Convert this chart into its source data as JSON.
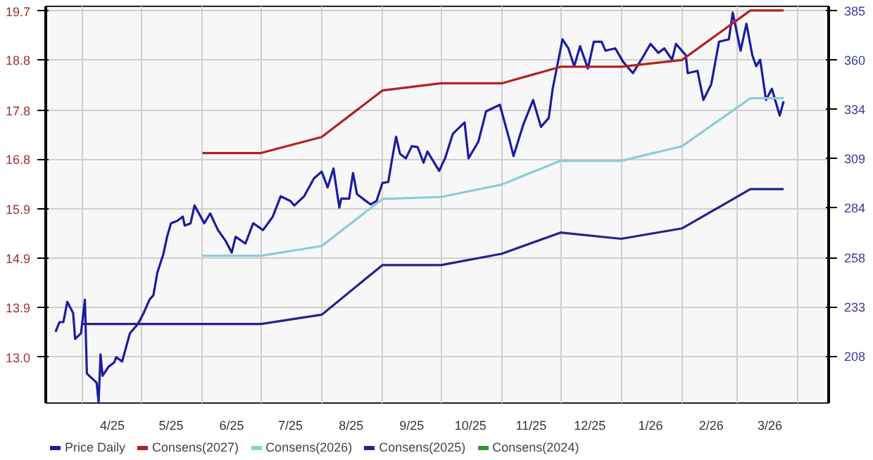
{
  "chart_data": {
    "type": "line",
    "xlim": [
      "2025-03-13",
      "2026-04-17"
    ],
    "xticks": [
      {
        "value": "2025-04-01",
        "label": null
      },
      {
        "value": "2025-05-01",
        "label": null
      },
      {
        "value": "2025-06-01",
        "label": null
      },
      {
        "value": "2025-07-01",
        "label": null
      },
      {
        "value": "2025-08-01",
        "label": null
      },
      {
        "value": "2025-09-01",
        "label": null
      },
      {
        "value": "2025-10-01",
        "label": null
      },
      {
        "value": "2025-11-01",
        "label": null
      },
      {
        "value": "2025-12-01",
        "label": null
      },
      {
        "value": "2026-01-01",
        "label": null
      },
      {
        "value": "2026-02-01",
        "label": null
      },
      {
        "value": "2026-03-01",
        "label": null
      },
      {
        "value": "2026-04-01",
        "label": null
      },
      {
        "value": "2025-04-16",
        "label": "4/25"
      },
      {
        "value": "2025-05-16",
        "label": "5/25"
      },
      {
        "value": "2025-06-16",
        "label": "6/25"
      },
      {
        "value": "2025-07-16",
        "label": "7/25"
      },
      {
        "value": "2025-08-16",
        "label": "8/25"
      },
      {
        "value": "2025-09-16",
        "label": "9/25"
      },
      {
        "value": "2025-10-16",
        "label": "10/25"
      },
      {
        "value": "2025-11-16",
        "label": "11/25"
      },
      {
        "value": "2025-12-16",
        "label": "12/25"
      },
      {
        "value": "2026-01-16",
        "label": "1/26"
      },
      {
        "value": "2026-02-16",
        "label": "2/26"
      },
      {
        "value": "2026-03-18",
        "label": "3/26"
      }
    ],
    "ylim": [
      12.1,
      19.78
    ],
    "yticks": [
      {
        "value": 12.99,
        "label": "13.0"
      },
      {
        "value": 13.95,
        "label": "13.9"
      },
      {
        "value": 14.9,
        "label": "14.9"
      },
      {
        "value": 15.86,
        "label": "15.9"
      },
      {
        "value": 16.82,
        "label": "16.8"
      },
      {
        "value": 17.77,
        "label": "17.8"
      },
      {
        "value": 18.75,
        "label": "18.8"
      },
      {
        "value": 19.69,
        "label": "19.7"
      }
    ],
    "y2lim": [
      184,
      387
    ],
    "y2ticks": [
      208,
      {
        "value": 233.3,
        "label": "233"
      },
      {
        "value": 258.4,
        "label": "258"
      },
      {
        "value": 283.9,
        "label": "284"
      },
      {
        "value": 309.1,
        "label": "309"
      },
      {
        "value": 334.4,
        "label": "334"
      },
      {
        "value": 359.7,
        "label": "360"
      },
      385
    ],
    "grid": true,
    "legend": "bottom",
    "series": [
      {
        "name": "Price Daily",
        "color": "#1c1ca0",
        "axis": "y2",
        "x": [
          "2025-03-18",
          "2025-03-20",
          "2025-03-22",
          "2025-03-24",
          "2025-03-27",
          "2025-03-28",
          "2025-03-31",
          "2025-04-02",
          "2025-04-03",
          "2025-04-08",
          "2025-04-09",
          "2025-04-10",
          "2025-04-11",
          "2025-04-14",
          "2025-04-17",
          "2025-04-18",
          "2025-04-21",
          "2025-04-25",
          "2025-04-29",
          "2025-05-02",
          "2025-05-05",
          "2025-05-07",
          "2025-05-09",
          "2025-05-12",
          "2025-05-14",
          "2025-05-16",
          "2025-05-19",
          "2025-05-22",
          "2025-05-23",
          "2025-05-26",
          "2025-05-28",
          "2025-06-02",
          "2025-06-05",
          "2025-06-09",
          "2025-06-13",
          "2025-06-16",
          "2025-06-18",
          "2025-06-23",
          "2025-06-27",
          "2025-07-02",
          "2025-07-07",
          "2025-07-11",
          "2025-07-16",
          "2025-07-18",
          "2025-07-23",
          "2025-07-28",
          "2025-08-01",
          "2025-08-04",
          "2025-08-07",
          "2025-08-10",
          "2025-08-11",
          "2025-08-15",
          "2025-08-17",
          "2025-08-19",
          "2025-08-22",
          "2025-08-26",
          "2025-08-29",
          "2025-09-01",
          "2025-09-04",
          "2025-09-06",
          "2025-09-08",
          "2025-09-10",
          "2025-09-13",
          "2025-09-16",
          "2025-09-19",
          "2025-09-22",
          "2025-09-24",
          "2025-09-30",
          "2025-10-03",
          "2025-10-07",
          "2025-10-13",
          "2025-10-15",
          "2025-10-20",
          "2025-10-24",
          "2025-10-31",
          "2025-11-05",
          "2025-11-07",
          "2025-11-12",
          "2025-11-17",
          "2025-11-21",
          "2025-11-25",
          "2025-11-27",
          "2025-12-02",
          "2025-12-05",
          "2025-12-08",
          "2025-12-11",
          "2025-12-15",
          "2025-12-18",
          "2025-12-22",
          "2025-12-24",
          "2025-12-29",
          "2026-01-02",
          "2026-01-07",
          "2026-01-12",
          "2026-01-16",
          "2026-01-20",
          "2026-01-23",
          "2026-01-27",
          "2026-01-29",
          "2026-02-03",
          "2026-02-04",
          "2026-02-09",
          "2026-02-12",
          "2026-02-16",
          "2026-02-20",
          "2026-02-25",
          "2026-02-27",
          "2026-03-03",
          "2026-03-06",
          "2026-03-09",
          "2026-03-11",
          "2026-03-13",
          "2026-03-16",
          "2026-03-19",
          "2026-03-23",
          "2026-03-25"
        ],
        "values": [
          220.4,
          225.4,
          225.4,
          235.8,
          230.0,
          216.8,
          219.7,
          236.9,
          199.1,
          194.4,
          184.5,
          208.9,
          197.9,
          202.5,
          204.8,
          207.5,
          205.2,
          219.7,
          224.3,
          230.0,
          236.9,
          239.2,
          250.7,
          259.9,
          269.1,
          276.0,
          277.1,
          279.4,
          274.8,
          276.0,
          285.1,
          276.0,
          281.0,
          272.5,
          266.8,
          261.0,
          269.1,
          265.6,
          276.0,
          272.5,
          279.4,
          289.8,
          287.4,
          285.1,
          289.8,
          298.9,
          302.4,
          294.3,
          304.0,
          284.0,
          288.6,
          288.6,
          301.7,
          290.9,
          288.6,
          285.6,
          287.4,
          296.6,
          297.1,
          309.2,
          320.3,
          311.5,
          309.2,
          315.4,
          315.0,
          307.0,
          312.7,
          302.8,
          309.2,
          321.8,
          327.6,
          309.2,
          317.7,
          333.3,
          336.6,
          318.4,
          310.4,
          326.5,
          339.1,
          325.3,
          329.9,
          344.8,
          370.1,
          365.5,
          356.3,
          366.6,
          355.2,
          368.9,
          368.9,
          364.3,
          365.5,
          358.6,
          352.8,
          360.9,
          367.8,
          363.2,
          365.5,
          359.7,
          367.8,
          362.0,
          352.8,
          354.0,
          339.1,
          347.1,
          368.9,
          370.1,
          383.8,
          364.3,
          378.1,
          362.0,
          356.3,
          359.7,
          339.1,
          344.8,
          331.1,
          338.4
        ]
      },
      {
        "name": "Consens(2027)",
        "color": "#b22222",
        "x": [
          "2025-06-01",
          "2025-07-01",
          "2025-08-01",
          "2025-09-01",
          "2025-10-01",
          "2025-11-01",
          "2025-12-01",
          "2026-01-01",
          "2026-02-01",
          "2026-03-08",
          "2026-03-25"
        ],
        "values": [
          16.94,
          16.94,
          17.25,
          18.15,
          18.29,
          18.29,
          18.61,
          18.61,
          18.74,
          19.7,
          19.7
        ]
      },
      {
        "name": "Consens(2026)",
        "color": "#8ccbd9",
        "x": [
          "2025-06-01",
          "2025-07-01",
          "2025-08-01",
          "2025-09-01",
          "2025-10-01",
          "2025-11-01",
          "2025-12-01",
          "2026-01-01",
          "2026-02-01",
          "2026-03-08",
          "2026-03-25"
        ],
        "values": [
          14.95,
          14.95,
          15.14,
          16.05,
          16.09,
          16.33,
          16.79,
          16.79,
          17.07,
          18.0,
          18.0
        ]
      },
      {
        "name": "Consens(2025)",
        "color": "#23238e",
        "x": [
          "2025-04-01",
          "2025-07-01",
          "2025-08-01",
          "2025-09-01",
          "2025-10-01",
          "2025-11-01",
          "2025-12-01",
          "2026-01-01",
          "2026-02-01",
          "2026-03-08",
          "2026-03-25"
        ],
        "values": [
          13.63,
          13.63,
          13.81,
          14.77,
          14.77,
          14.99,
          15.4,
          15.28,
          15.48,
          16.24,
          16.24
        ]
      },
      {
        "name": "Consens(2024)",
        "color": "#2e9a2e"
      }
    ]
  }
}
